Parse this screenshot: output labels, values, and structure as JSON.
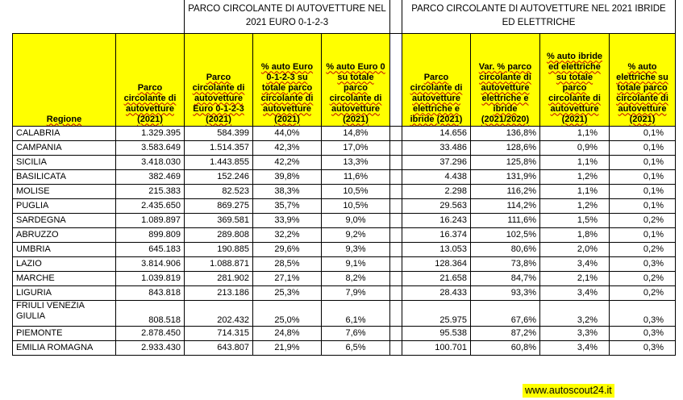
{
  "group_titles": {
    "euro": "PARCO CIRCOLANTE DI AUTOVETTURE NEL 2021 EURO 0-1-2-3",
    "ibride": "PARCO CIRCOLANTE DI AUTOVETTURE NEL 2021 IBRIDE ED ELETTRICHE"
  },
  "headers": {
    "regione": "Regione",
    "parco": "Parco circolante di autovetture (2021)",
    "euro0123": "Parco circolante di autovetture Euro 0-1-2-3 (2021)",
    "pct_euro0123": "% auto Euro 0-1-2-3 su totale parco circolante di autovetture (2021)",
    "pct_euro0": "% auto Euro 0 su totale parco circolante di autovetture (2021)",
    "elettriche_ibride": "Parco circolante di autovetture elettriche e ibride (2021)",
    "var_pct": "Var. % parco circolante di autovetture elettriche e ibride (2021/2020)",
    "pct_ibride_elettriche": "% auto ibride ed elettriche su totale parco circolante di autovetture (2021)",
    "pct_elettriche": "% auto elettriche su totale parco circolante di autovetture (2021)"
  },
  "rows": [
    {
      "regione": "CALABRIA",
      "parco": "1.329.395",
      "euro0123": "584.399",
      "pct_euro0123": "44,0%",
      "pct_euro0": "14,8%",
      "elett_ibride": "14.656",
      "var": "136,8%",
      "pct_ib_el": "1,1%",
      "pct_el": "0,1%"
    },
    {
      "regione": "CAMPANIA",
      "parco": "3.583.649",
      "euro0123": "1.514.357",
      "pct_euro0123": "42,3%",
      "pct_euro0": "17,0%",
      "elett_ibride": "33.486",
      "var": "128,6%",
      "pct_ib_el": "0,9%",
      "pct_el": "0,1%"
    },
    {
      "regione": "SICILIA",
      "parco": "3.418.030",
      "euro0123": "1.443.855",
      "pct_euro0123": "42,2%",
      "pct_euro0": "13,3%",
      "elett_ibride": "37.296",
      "var": "125,8%",
      "pct_ib_el": "1,1%",
      "pct_el": "0,1%"
    },
    {
      "regione": "BASILICATA",
      "parco": "382.469",
      "euro0123": "152.246",
      "pct_euro0123": "39,8%",
      "pct_euro0": "11,6%",
      "elett_ibride": "4.438",
      "var": "131,9%",
      "pct_ib_el": "1,2%",
      "pct_el": "0,1%"
    },
    {
      "regione": "MOLISE",
      "parco": "215.383",
      "euro0123": "82.523",
      "pct_euro0123": "38,3%",
      "pct_euro0": "10,5%",
      "elett_ibride": "2.298",
      "var": "116,2%",
      "pct_ib_el": "1,1%",
      "pct_el": "0,1%"
    },
    {
      "regione": "PUGLIA",
      "parco": "2.435.650",
      "euro0123": "869.275",
      "pct_euro0123": "35,7%",
      "pct_euro0": "10,5%",
      "elett_ibride": "29.563",
      "var": "114,2%",
      "pct_ib_el": "1,2%",
      "pct_el": "0,1%"
    },
    {
      "regione": "SARDEGNA",
      "parco": "1.089.897",
      "euro0123": "369.581",
      "pct_euro0123": "33,9%",
      "pct_euro0": "9,0%",
      "elett_ibride": "16.243",
      "var": "111,6%",
      "pct_ib_el": "1,5%",
      "pct_el": "0,2%"
    },
    {
      "regione": "ABRUZZO",
      "parco": "899.809",
      "euro0123": "289.808",
      "pct_euro0123": "32,2%",
      "pct_euro0": "9,2%",
      "elett_ibride": "16.374",
      "var": "102,5%",
      "pct_ib_el": "1,8%",
      "pct_el": "0,1%"
    },
    {
      "regione": "UMBRIA",
      "parco": "645.183",
      "euro0123": "190.885",
      "pct_euro0123": "29,6%",
      "pct_euro0": "9,3%",
      "elett_ibride": "13.053",
      "var": "80,6%",
      "pct_ib_el": "2,0%",
      "pct_el": "0,2%"
    },
    {
      "regione": "LAZIO",
      "parco": "3.814.906",
      "euro0123": "1.088.871",
      "pct_euro0123": "28,5%",
      "pct_euro0": "9,1%",
      "elett_ibride": "128.364",
      "var": "73,8%",
      "pct_ib_el": "3,4%",
      "pct_el": "0,3%"
    },
    {
      "regione": "MARCHE",
      "parco": "1.039.819",
      "euro0123": "281.902",
      "pct_euro0123": "27,1%",
      "pct_euro0": "8,2%",
      "elett_ibride": "21.658",
      "var": "84,7%",
      "pct_ib_el": "2,1%",
      "pct_el": "0,2%"
    },
    {
      "regione": "LIGURIA",
      "parco": "843.818",
      "euro0123": "213.186",
      "pct_euro0123": "25,3%",
      "pct_euro0": "7,9%",
      "elett_ibride": "28.433",
      "var": "93,3%",
      "pct_ib_el": "3,4%",
      "pct_el": "0,2%"
    },
    {
      "regione": "FRIULI VENEZIA GIULIA",
      "parco": "808.518",
      "euro0123": "202.432",
      "pct_euro0123": "25,0%",
      "pct_euro0": "6,1%",
      "elett_ibride": "25.975",
      "var": "67,6%",
      "pct_ib_el": "3,2%",
      "pct_el": "0,3%"
    },
    {
      "regione": "PIEMONTE",
      "parco": "2.878.450",
      "euro0123": "714.315",
      "pct_euro0123": "24,8%",
      "pct_euro0": "7,6%",
      "elett_ibride": "95.538",
      "var": "87,2%",
      "pct_ib_el": "3,3%",
      "pct_el": "0,3%"
    },
    {
      "regione": "EMILIA ROMAGNA",
      "parco": "2.933.430",
      "euro0123": "643.807",
      "pct_euro0123": "21,9%",
      "pct_euro0": "6,5%",
      "elett_ibride": "100.701",
      "var": "60,8%",
      "pct_ib_el": "3,4%",
      "pct_el": "0,3%"
    }
  ],
  "source": "www.autoscout24.it"
}
